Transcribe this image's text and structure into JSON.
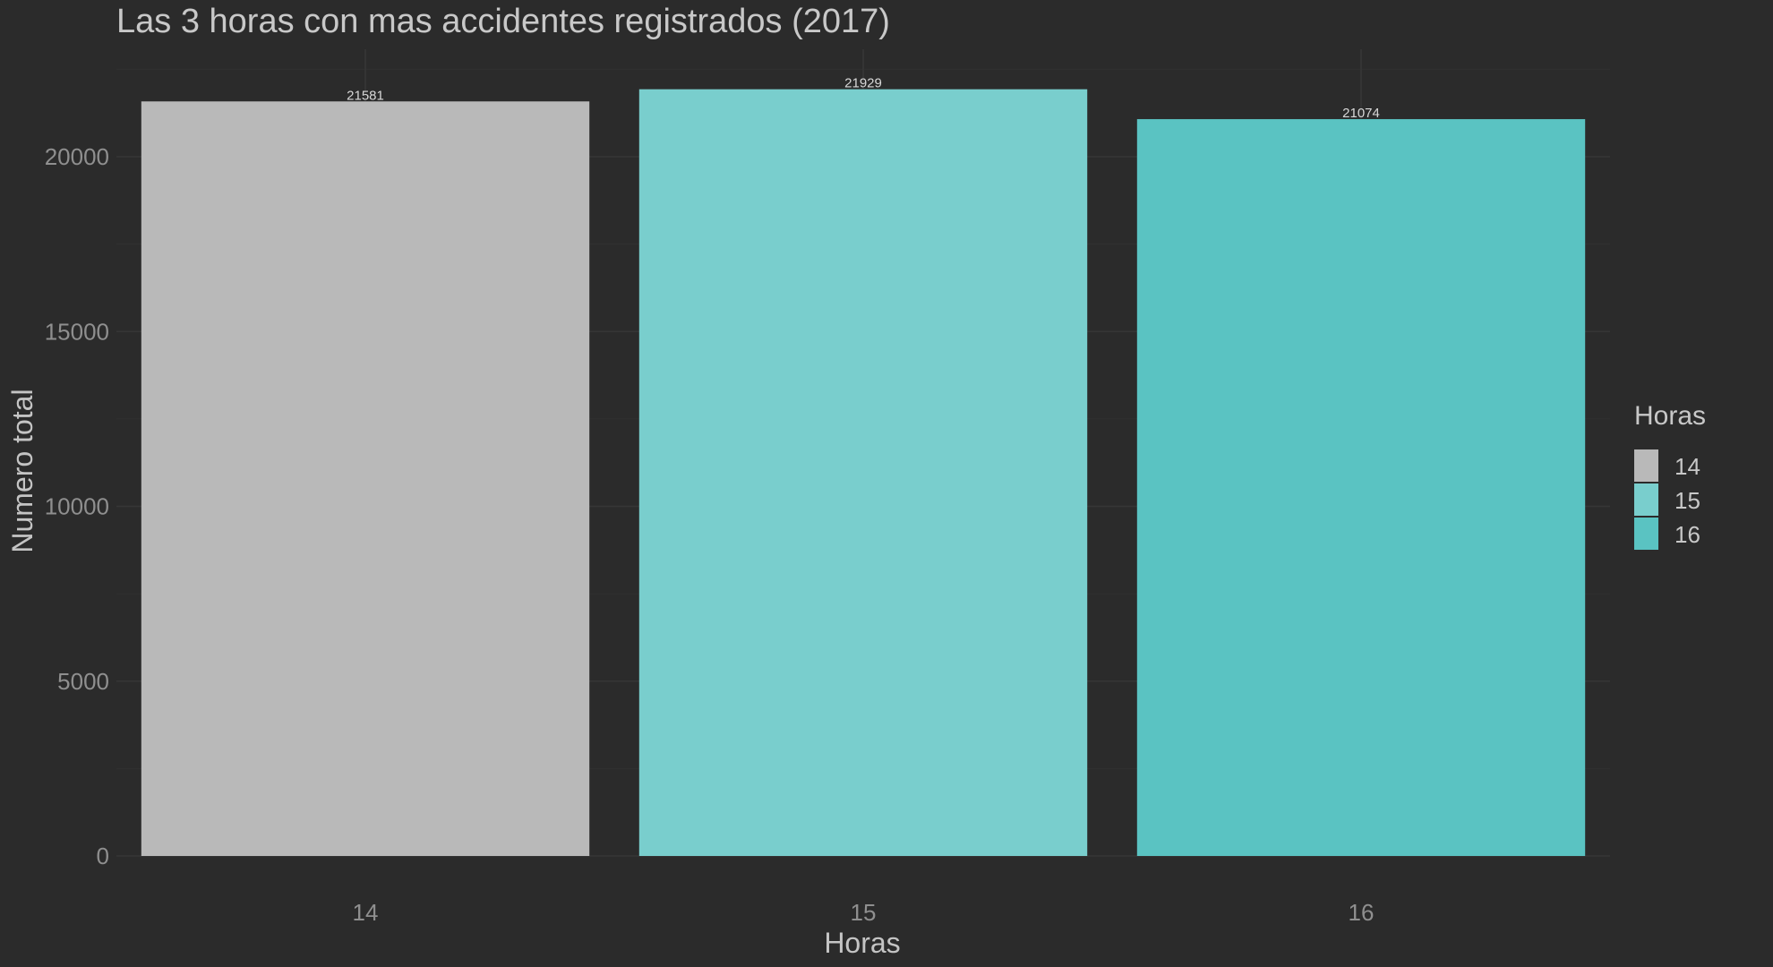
{
  "chart_data": {
    "type": "bar",
    "title": "Las 3 horas con mas accidentes registrados (2017)",
    "xlabel": "Horas",
    "ylabel": "Numero total",
    "categories": [
      "14",
      "15",
      "16"
    ],
    "values": [
      21581,
      21929,
      21074
    ],
    "data_labels": [
      "21581",
      "21929",
      "21074"
    ],
    "colors": [
      "#b9b9b9",
      "#79cecd",
      "#5ac3c2"
    ],
    "ylim": [
      0,
      22500
    ],
    "yticks": [
      0,
      5000,
      10000,
      15000,
      20000
    ],
    "ytick_labels": [
      "0",
      "5000",
      "10000",
      "15000",
      "20000"
    ],
    "grid": true,
    "legend": {
      "title": "Horas",
      "position": "right",
      "entries": [
        "14",
        "15",
        "16"
      ]
    },
    "background": "#2b2b2b"
  }
}
